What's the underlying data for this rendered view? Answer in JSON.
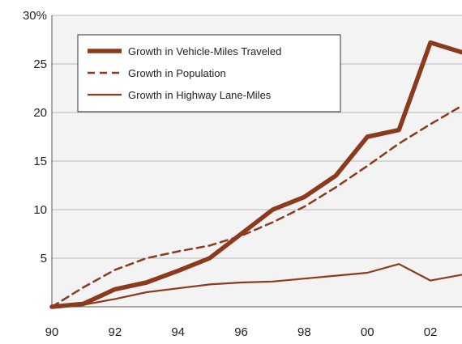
{
  "chart_data": {
    "type": "line",
    "title": "",
    "xlabel": "",
    "ylabel": "",
    "x": [
      1990,
      1991,
      1992,
      1993,
      1994,
      1995,
      1996,
      1997,
      1998,
      1999,
      2000,
      2001,
      2002,
      2003
    ],
    "xlim": [
      1990,
      2003
    ],
    "ylim": [
      0,
      30
    ],
    "x_ticks": [
      {
        "value": 1990,
        "label": "90"
      },
      {
        "value": 1992,
        "label": "92"
      },
      {
        "value": 1994,
        "label": "94"
      },
      {
        "value": 1996,
        "label": "96"
      },
      {
        "value": 1998,
        "label": "98"
      },
      {
        "value": 2000,
        "label": "00"
      },
      {
        "value": 2002,
        "label": "02"
      }
    ],
    "y_ticks": [
      {
        "value": 30,
        "label": "30%"
      },
      {
        "value": 25,
        "label": "25"
      },
      {
        "value": 20,
        "label": "20"
      },
      {
        "value": 15,
        "label": "15"
      },
      {
        "value": 10,
        "label": "10"
      },
      {
        "value": 5,
        "label": "5"
      }
    ],
    "grid": "horizontal",
    "legend_position": "top-left",
    "series": [
      {
        "name": "Growth in Vehicle-Miles Traveled",
        "style": "thick-solid",
        "color": "#8b3a1e",
        "values": [
          0,
          0.3,
          1.8,
          2.5,
          3.7,
          5.0,
          7.5,
          10.0,
          11.3,
          13.5,
          17.5,
          18.2,
          27.2,
          26.2
        ]
      },
      {
        "name": "Growth in Population",
        "style": "dashed",
        "color": "#8b3a1e",
        "values": [
          0,
          2.0,
          3.8,
          5.0,
          5.7,
          6.3,
          7.3,
          8.7,
          10.3,
          12.3,
          14.5,
          16.8,
          18.8,
          20.7
        ]
      },
      {
        "name": "Growth in Highway Lane-Miles",
        "style": "thin-solid",
        "color": "#8b3a1e",
        "values": [
          0,
          0.2,
          0.8,
          1.5,
          1.9,
          2.3,
          2.5,
          2.6,
          2.9,
          3.2,
          3.5,
          4.4,
          2.7,
          3.3
        ]
      }
    ]
  }
}
